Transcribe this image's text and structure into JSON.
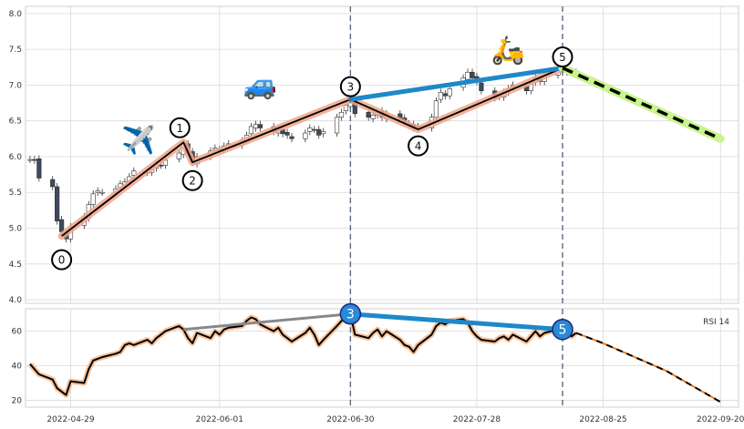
{
  "chart_data": [
    {
      "type": "candlestick",
      "panel": "price",
      "ylim": [
        3.95,
        8.1
      ],
      "yticks": [
        "4.0",
        "4.5",
        "5.0",
        "5.5",
        "6.0",
        "6.5",
        "7.0",
        "7.5",
        "8.0"
      ],
      "xlim": [
        "2022-04-19",
        "2022-09-24"
      ],
      "xticks": [
        "2022-04-29",
        "2022-06-01",
        "2022-06-30",
        "2022-07-28",
        "2022-08-25",
        "2022-09-20"
      ],
      "grid": true,
      "wave_points": [
        {
          "label": "0",
          "date": "2022-04-27",
          "value": 4.89
        },
        {
          "label": "1",
          "date": "2022-05-24",
          "value": 6.2
        },
        {
          "label": "2",
          "date": "2022-05-26",
          "value": 5.92
        },
        {
          "label": "3",
          "date": "2022-06-30",
          "value": 6.8
        },
        {
          "label": "4",
          "date": "2022-07-15",
          "value": 6.38
        },
        {
          "label": "5",
          "date": "2022-08-16",
          "value": 7.24
        }
      ],
      "projection": [
        {
          "date": "2022-08-16",
          "value": 7.24
        },
        {
          "date": "2022-09-20",
          "value": 6.25
        }
      ],
      "trendline_3_5": [
        {
          "date": "2022-06-30",
          "value": 6.8
        },
        {
          "date": "2022-08-16",
          "value": 7.24
        }
      ],
      "vertical_markers": [
        "2022-06-30",
        "2022-08-16"
      ],
      "emoji_marks": [
        {
          "name": "airplane",
          "glyph": "✈️",
          "date": "2022-05-14",
          "value": 6.1
        },
        {
          "name": "car",
          "glyph": "🚙",
          "date": "2022-06-10",
          "value": 6.88
        },
        {
          "name": "scooter",
          "glyph": "🛵",
          "date": "2022-08-04",
          "value": 7.36
        }
      ],
      "candles_close_path": [
        [
          "2022-04-20",
          5.96
        ],
        [
          "2022-04-21",
          5.95
        ],
        [
          "2022-04-22",
          5.7
        ],
        [
          "2022-04-25",
          5.58
        ],
        [
          "2022-04-26",
          5.1
        ],
        [
          "2022-04-27",
          4.95
        ],
        [
          "2022-04-28",
          4.85
        ],
        [
          "2022-04-29",
          5.02
        ],
        [
          "2022-05-02",
          5.16
        ],
        [
          "2022-05-03",
          5.33
        ],
        [
          "2022-05-04",
          5.48
        ],
        [
          "2022-05-05",
          5.52
        ],
        [
          "2022-05-06",
          5.5
        ],
        [
          "2022-05-09",
          5.55
        ],
        [
          "2022-05-10",
          5.62
        ],
        [
          "2022-05-11",
          5.65
        ],
        [
          "2022-05-12",
          5.72
        ],
        [
          "2022-05-13",
          5.8
        ],
        [
          "2022-05-16",
          5.78
        ],
        [
          "2022-05-17",
          5.82
        ],
        [
          "2022-05-18",
          5.9
        ],
        [
          "2022-05-19",
          5.88
        ],
        [
          "2022-05-20",
          5.95
        ],
        [
          "2022-05-23",
          6.05
        ],
        [
          "2022-05-24",
          6.18
        ],
        [
          "2022-05-25",
          6.05
        ],
        [
          "2022-05-26",
          5.92
        ],
        [
          "2022-05-27",
          6.0
        ],
        [
          "2022-05-30",
          6.08
        ],
        [
          "2022-05-31",
          6.12
        ],
        [
          "2022-06-01",
          6.1
        ],
        [
          "2022-06-02",
          6.15
        ],
        [
          "2022-06-03",
          6.18
        ],
        [
          "2022-06-06",
          6.22
        ],
        [
          "2022-06-07",
          6.3
        ],
        [
          "2022-06-08",
          6.42
        ],
        [
          "2022-06-09",
          6.45
        ],
        [
          "2022-06-10",
          6.4
        ],
        [
          "2022-06-13",
          6.35
        ],
        [
          "2022-06-14",
          6.38
        ],
        [
          "2022-06-15",
          6.32
        ],
        [
          "2022-06-16",
          6.3
        ],
        [
          "2022-06-17",
          6.25
        ],
        [
          "2022-06-20",
          6.33
        ],
        [
          "2022-06-21",
          6.4
        ],
        [
          "2022-06-22",
          6.38
        ],
        [
          "2022-06-23",
          6.3
        ],
        [
          "2022-06-24",
          6.35
        ],
        [
          "2022-06-27",
          6.55
        ],
        [
          "2022-06-28",
          6.62
        ],
        [
          "2022-06-29",
          6.72
        ],
        [
          "2022-06-30",
          6.78
        ],
        [
          "2022-07-01",
          6.6
        ],
        [
          "2022-07-04",
          6.55
        ],
        [
          "2022-07-05",
          6.58
        ],
        [
          "2022-07-06",
          6.62
        ],
        [
          "2022-07-07",
          6.55
        ],
        [
          "2022-07-08",
          6.6
        ],
        [
          "2022-07-11",
          6.52
        ],
        [
          "2022-07-12",
          6.48
        ],
        [
          "2022-07-13",
          6.45
        ],
        [
          "2022-07-14",
          6.4
        ],
        [
          "2022-07-15",
          6.42
        ],
        [
          "2022-07-18",
          6.55
        ],
        [
          "2022-07-19",
          6.78
        ],
        [
          "2022-07-20",
          6.9
        ],
        [
          "2022-07-21",
          6.85
        ],
        [
          "2022-07-22",
          6.95
        ],
        [
          "2022-07-25",
          7.1
        ],
        [
          "2022-07-26",
          7.18
        ],
        [
          "2022-07-27",
          7.1
        ],
        [
          "2022-07-28",
          7.05
        ],
        [
          "2022-07-29",
          6.92
        ],
        [
          "2022-08-01",
          6.82
        ],
        [
          "2022-08-02",
          6.85
        ],
        [
          "2022-08-03",
          6.9
        ],
        [
          "2022-08-04",
          6.95
        ],
        [
          "2022-08-05",
          7.0
        ],
        [
          "2022-08-08",
          6.92
        ],
        [
          "2022-08-09",
          7.02
        ],
        [
          "2022-08-10",
          7.1
        ],
        [
          "2022-08-11",
          7.05
        ],
        [
          "2022-08-12",
          7.12
        ],
        [
          "2022-08-15",
          7.2
        ],
        [
          "2022-08-16",
          7.22
        ],
        [
          "2022-08-17",
          7.18
        ],
        [
          "2022-08-18",
          7.2
        ],
        [
          "2022-08-19",
          7.15
        ]
      ]
    },
    {
      "type": "line",
      "panel": "rsi",
      "legend": "RSI 14",
      "legend_position": "top-right",
      "ylim": [
        16,
        73
      ],
      "yticks": [
        "20",
        "40",
        "60"
      ],
      "grid": true,
      "series": [
        {
          "values": [
            [
              "2022-04-20",
              41
            ],
            [
              "2022-04-22",
              35
            ],
            [
              "2022-04-25",
              32
            ],
            [
              "2022-04-26",
              27
            ],
            [
              "2022-04-28",
              23
            ],
            [
              "2022-04-29",
              31
            ],
            [
              "2022-05-02",
              30
            ],
            [
              "2022-05-03",
              38
            ],
            [
              "2022-05-04",
              43
            ],
            [
              "2022-05-05",
              44
            ],
            [
              "2022-05-06",
              45
            ],
            [
              "2022-05-09",
              47
            ],
            [
              "2022-05-10",
              48
            ],
            [
              "2022-05-11",
              52
            ],
            [
              "2022-05-12",
              53
            ],
            [
              "2022-05-13",
              52
            ],
            [
              "2022-05-16",
              55
            ],
            [
              "2022-05-17",
              53
            ],
            [
              "2022-05-18",
              56
            ],
            [
              "2022-05-19",
              58
            ],
            [
              "2022-05-20",
              60
            ],
            [
              "2022-05-23",
              63
            ],
            [
              "2022-05-24",
              61
            ],
            [
              "2022-05-25",
              56
            ],
            [
              "2022-05-26",
              53
            ],
            [
              "2022-05-27",
              59
            ],
            [
              "2022-05-30",
              56
            ],
            [
              "2022-05-31",
              60
            ],
            [
              "2022-06-01",
              58
            ],
            [
              "2022-06-02",
              61
            ],
            [
              "2022-06-03",
              62
            ],
            [
              "2022-06-06",
              63
            ],
            [
              "2022-06-07",
              66
            ],
            [
              "2022-06-08",
              68
            ],
            [
              "2022-06-09",
              67
            ],
            [
              "2022-06-10",
              64
            ],
            [
              "2022-06-13",
              60
            ],
            [
              "2022-06-14",
              62
            ],
            [
              "2022-06-15",
              58
            ],
            [
              "2022-06-16",
              56
            ],
            [
              "2022-06-17",
              54
            ],
            [
              "2022-06-20",
              59
            ],
            [
              "2022-06-21",
              62
            ],
            [
              "2022-06-22",
              58
            ],
            [
              "2022-06-23",
              52
            ],
            [
              "2022-06-24",
              55
            ],
            [
              "2022-06-27",
              63
            ],
            [
              "2022-06-28",
              66
            ],
            [
              "2022-06-29",
              68
            ],
            [
              "2022-06-30",
              70
            ],
            [
              "2022-07-01",
              58
            ],
            [
              "2022-07-04",
              56
            ],
            [
              "2022-07-05",
              59
            ],
            [
              "2022-07-06",
              61
            ],
            [
              "2022-07-07",
              57
            ],
            [
              "2022-07-08",
              60
            ],
            [
              "2022-07-11",
              55
            ],
            [
              "2022-07-12",
              52
            ],
            [
              "2022-07-13",
              51
            ],
            [
              "2022-07-14",
              48
            ],
            [
              "2022-07-15",
              52
            ],
            [
              "2022-07-18",
              58
            ],
            [
              "2022-07-19",
              63
            ],
            [
              "2022-07-20",
              65
            ],
            [
              "2022-07-21",
              64
            ],
            [
              "2022-07-22",
              66
            ],
            [
              "2022-07-25",
              67
            ],
            [
              "2022-07-26",
              65
            ],
            [
              "2022-07-27",
              60
            ],
            [
              "2022-07-28",
              57
            ],
            [
              "2022-07-29",
              55
            ],
            [
              "2022-08-01",
              54
            ],
            [
              "2022-08-02",
              56
            ],
            [
              "2022-08-03",
              57
            ],
            [
              "2022-08-04",
              55
            ],
            [
              "2022-08-05",
              58
            ],
            [
              "2022-08-08",
              54
            ],
            [
              "2022-08-09",
              57
            ],
            [
              "2022-08-10",
              60
            ],
            [
              "2022-08-11",
              57
            ],
            [
              "2022-08-12",
              59
            ],
            [
              "2022-08-15",
              61
            ],
            [
              "2022-08-16",
              61
            ],
            [
              "2022-08-17",
              60
            ],
            [
              "2022-08-18",
              57
            ],
            [
              "2022-08-19",
              59
            ]
          ]
        }
      ],
      "projection": [
        [
          "2022-08-19",
          59
        ],
        [
          "2022-08-25",
          53
        ],
        [
          "2022-09-01",
          45
        ],
        [
          "2022-09-08",
          37
        ],
        [
          "2022-09-14",
          28
        ],
        [
          "2022-09-20",
          19
        ]
      ],
      "divergence_line": [
        [
          "2022-06-30",
          70
        ],
        [
          "2022-08-16",
          61
        ]
      ],
      "gray_line": [
        [
          "2022-05-24",
          61
        ],
        [
          "2022-06-30",
          70
        ]
      ],
      "markers": [
        {
          "label": "3",
          "date": "2022-06-30",
          "value": 70
        },
        {
          "label": "5",
          "date": "2022-08-16",
          "value": 61
        }
      ]
    }
  ],
  "colors": {
    "candle_down": "#3e4a5e",
    "wave_line": "#000000",
    "wave_glow": "#f0a58a",
    "trend_blue": "#1e88c8",
    "projection_glow": "#c8f58c",
    "rsi_glow": "#f7b88a",
    "marker_blue": "#2a8ad4",
    "vline": "#5a6a80",
    "grid": "#d9d9d9"
  }
}
